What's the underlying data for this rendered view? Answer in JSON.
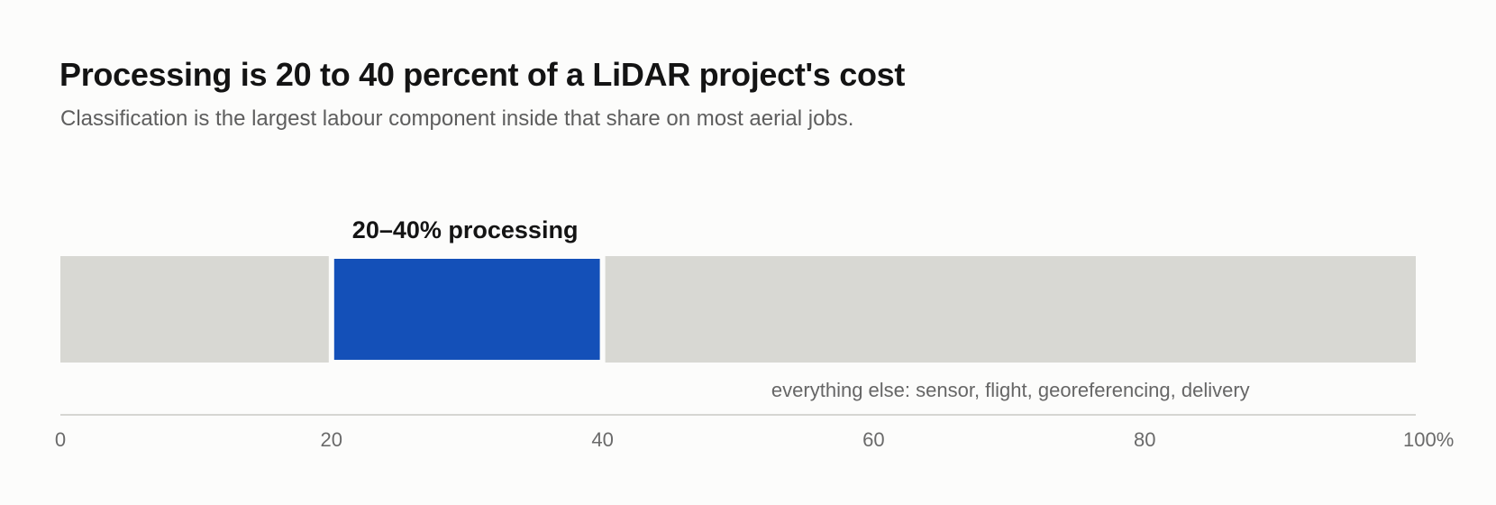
{
  "title": "Processing is 20 to 40 percent of a LiDAR project's cost",
  "subtitle": "Classification is the largest labour component inside that share on most aerial jobs.",
  "chart_data": {
    "type": "bar",
    "orientation": "horizontal-stacked",
    "xlim": [
      0,
      100
    ],
    "x_ticks": [
      0,
      20,
      40,
      60,
      80,
      100
    ],
    "x_tick_labels": [
      "0",
      "20",
      "40",
      "60",
      "80",
      "100%"
    ],
    "segments": [
      {
        "name": "",
        "start": 0,
        "end": 20,
        "label": "",
        "color": "#d8d8d3"
      },
      {
        "name": "processing",
        "start": 20,
        "end": 40,
        "label": "20–40% processing",
        "color": "#1450b8"
      },
      {
        "name": "everything else",
        "start": 40,
        "end": 100,
        "label": "everything else: sensor, flight, georeferencing, delivery",
        "color": "#d8d8d3"
      }
    ],
    "grid": false,
    "legend": "none"
  },
  "colors": {
    "accent": "#1450b8",
    "muted_bar": "#d8d8d3",
    "axis_line": "#d6d6d2",
    "tick_text": "#6a6a6a",
    "annotation_text": "#666666",
    "highlight_label": "#141414"
  }
}
